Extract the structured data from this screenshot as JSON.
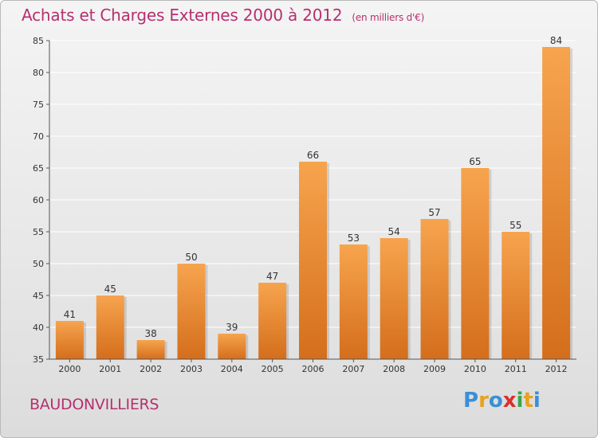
{
  "header": {
    "title": "Achats et Charges Externes 2000 à 2012",
    "unit_note": "(en milliers d'€)"
  },
  "footer": {
    "commune": "BAUDONVILLIERS",
    "logo_text": "Proxiti"
  },
  "colors": {
    "title": "#b5306f",
    "bar_top": "#f7a44e",
    "bar_bottom": "#d46e1c",
    "grid": "#ffffff",
    "axis_text": "#333333"
  },
  "chart_data": {
    "type": "bar",
    "title": "Achats et Charges Externes 2000 à 2012",
    "categories": [
      "2000",
      "2001",
      "2002",
      "2003",
      "2004",
      "2005",
      "2006",
      "2007",
      "2008",
      "2009",
      "2010",
      "2011",
      "2012"
    ],
    "values": [
      41,
      45,
      38,
      50,
      39,
      47,
      66,
      53,
      54,
      57,
      65,
      55,
      84
    ],
    "ylim": [
      35,
      85
    ],
    "yticks": [
      35,
      40,
      45,
      50,
      55,
      60,
      65,
      70,
      75,
      80,
      85
    ],
    "grid": true,
    "data_labels": true
  }
}
